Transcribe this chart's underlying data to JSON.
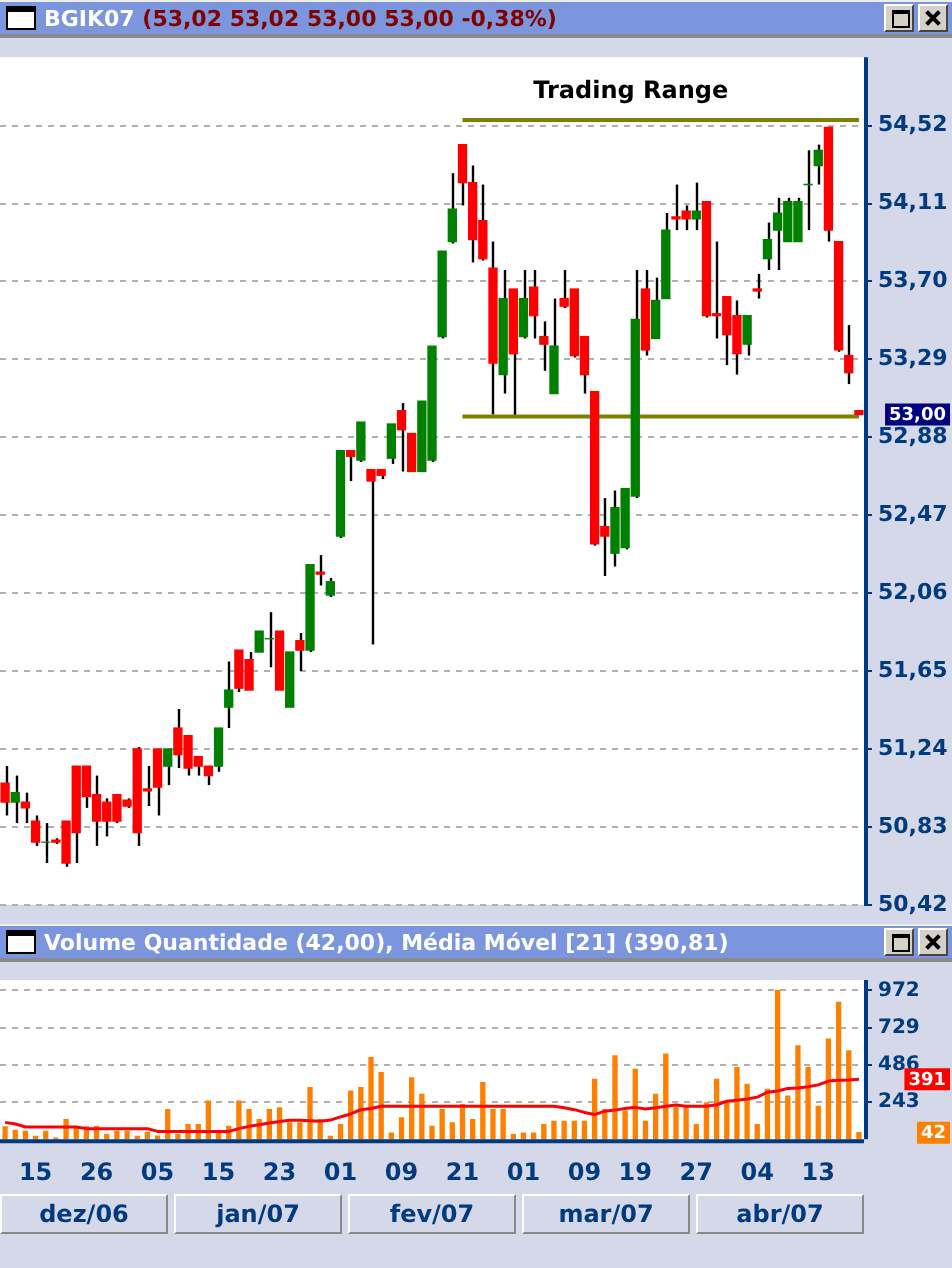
{
  "chart_data": [
    {
      "type": "candlestick",
      "title": "BGIK07 (53,02 53,02 53,00 53,00 -0,38%)",
      "categories": [
        null,
        null,
        null,
        "15",
        null,
        null,
        null,
        null,
        null,
        "26",
        null,
        null,
        null,
        null,
        null,
        "05",
        null,
        null,
        null,
        null,
        null,
        "15",
        null,
        null,
        null,
        null,
        null,
        "23",
        null,
        null,
        null,
        null,
        null,
        "01",
        null,
        null,
        null,
        null,
        null,
        "09",
        null,
        null,
        null,
        null,
        null,
        "21",
        null,
        null,
        null,
        null,
        null,
        "01",
        null,
        null,
        null,
        null,
        null,
        "09",
        null,
        null,
        null,
        null,
        "19",
        null,
        null,
        null,
        null,
        null,
        "27",
        null,
        null,
        null,
        null,
        null,
        "04",
        null,
        null,
        null,
        null,
        null,
        "13",
        null,
        null,
        null,
        null
      ],
      "ohlc": [
        [
          51.06,
          51.15,
          50.89,
          50.96
        ],
        [
          50.96,
          51.1,
          50.85,
          51.01
        ],
        [
          50.96,
          51.01,
          50.85,
          50.93
        ],
        [
          50.86,
          50.89,
          50.73,
          50.75
        ],
        [
          50.75,
          50.85,
          50.64,
          50.75
        ],
        [
          50.76,
          50.77,
          50.74,
          50.75
        ],
        [
          50.86,
          50.86,
          50.62,
          50.64
        ],
        [
          51.15,
          51.15,
          50.64,
          50.8
        ],
        [
          51.15,
          51.15,
          50.93,
          50.99
        ],
        [
          51.0,
          51.1,
          50.73,
          50.86
        ],
        [
          50.96,
          50.98,
          50.78,
          50.86
        ],
        [
          51.0,
          51.0,
          50.85,
          50.86
        ],
        [
          50.97,
          50.98,
          50.93,
          50.94
        ],
        [
          51.24,
          51.25,
          50.73,
          50.8
        ],
        [
          51.03,
          51.15,
          50.94,
          51.02
        ],
        [
          51.24,
          51.24,
          50.89,
          51.04
        ],
        [
          51.15,
          51.24,
          51.05,
          51.24
        ],
        [
          51.35,
          51.45,
          51.14,
          51.21
        ],
        [
          51.31,
          51.31,
          51.1,
          51.14
        ],
        [
          51.2,
          51.2,
          51.1,
          51.15
        ],
        [
          51.15,
          51.15,
          51.05,
          51.1
        ],
        [
          51.15,
          51.35,
          51.12,
          51.35
        ],
        [
          51.46,
          51.7,
          51.35,
          51.55
        ],
        [
          51.76,
          51.76,
          51.54,
          51.56
        ],
        [
          51.71,
          51.75,
          51.55,
          51.55
        ],
        [
          51.75,
          51.86,
          51.75,
          51.86
        ],
        [
          51.82,
          51.96,
          51.67,
          51.82
        ],
        [
          51.86,
          51.86,
          51.55,
          51.55
        ],
        [
          51.46,
          51.75,
          51.46,
          51.75
        ],
        [
          51.81,
          51.85,
          51.65,
          51.76
        ],
        [
          51.76,
          52.21,
          51.75,
          52.21
        ],
        [
          52.17,
          52.26,
          52.1,
          52.16
        ],
        [
          52.05,
          52.14,
          52.04,
          52.12
        ],
        [
          52.36,
          52.81,
          52.35,
          52.81
        ],
        [
          52.81,
          52.81,
          52.65,
          52.78
        ],
        [
          52.76,
          52.96,
          52.75,
          52.96
        ],
        [
          52.71,
          52.71,
          51.79,
          52.65
        ],
        [
          52.71,
          52.71,
          52.66,
          52.68
        ],
        [
          52.77,
          52.95,
          52.74,
          52.95
        ],
        [
          53.02,
          53.06,
          52.7,
          52.92
        ],
        [
          52.9,
          52.9,
          52.7,
          52.7
        ],
        [
          52.7,
          53.07,
          52.7,
          53.07
        ],
        [
          52.76,
          53.36,
          52.75,
          53.36
        ],
        [
          53.41,
          53.86,
          53.4,
          53.86
        ],
        [
          53.91,
          54.27,
          53.9,
          54.08
        ],
        [
          54.42,
          54.42,
          54.1,
          54.22
        ],
        [
          54.22,
          54.31,
          53.8,
          53.92
        ],
        [
          54.02,
          54.21,
          53.81,
          53.82
        ],
        [
          53.77,
          53.91,
          53.0,
          53.27
        ],
        [
          53.21,
          53.76,
          53.11,
          53.61
        ],
        [
          53.66,
          53.66,
          52.99,
          53.32
        ],
        [
          53.41,
          53.76,
          53.4,
          53.61
        ],
        [
          53.67,
          53.76,
          53.4,
          53.52
        ],
        [
          53.41,
          53.49,
          53.23,
          53.37
        ],
        [
          53.11,
          53.61,
          53.11,
          53.36
        ],
        [
          53.61,
          53.76,
          53.56,
          53.57
        ],
        [
          53.66,
          53.66,
          53.3,
          53.31
        ],
        [
          53.41,
          53.41,
          53.11,
          53.21
        ],
        [
          53.12,
          53.12,
          52.31,
          52.32
        ],
        [
          52.41,
          52.56,
          52.15,
          52.36
        ],
        [
          52.27,
          52.6,
          52.2,
          52.51
        ],
        [
          52.3,
          52.61,
          52.29,
          52.61
        ],
        [
          52.57,
          53.76,
          52.56,
          53.5
        ],
        [
          53.66,
          53.76,
          53.31,
          53.34
        ],
        [
          53.4,
          53.72,
          53.4,
          53.6
        ],
        [
          53.61,
          54.06,
          53.61,
          53.97
        ],
        [
          54.04,
          54.21,
          53.97,
          54.03
        ],
        [
          54.07,
          54.1,
          53.97,
          54.03
        ],
        [
          54.03,
          54.22,
          53.97,
          54.07
        ],
        [
          54.12,
          54.12,
          53.51,
          53.52
        ],
        [
          53.53,
          53.91,
          53.4,
          53.52
        ],
        [
          53.62,
          53.62,
          53.26,
          53.42
        ],
        [
          53.52,
          53.6,
          53.21,
          53.32
        ],
        [
          53.37,
          53.52,
          53.31,
          53.52
        ],
        [
          53.66,
          53.74,
          53.61,
          53.65
        ],
        [
          53.82,
          54.01,
          53.76,
          53.92
        ],
        [
          53.97,
          54.14,
          53.76,
          54.06
        ],
        [
          53.91,
          54.14,
          53.91,
          54.12
        ],
        [
          53.91,
          54.14,
          53.91,
          54.12
        ],
        [
          54.21,
          54.39,
          53.97,
          54.21
        ],
        [
          54.31,
          54.42,
          54.21,
          54.39
        ],
        [
          54.51,
          54.51,
          53.91,
          53.97
        ],
        [
          53.91,
          53.91,
          53.33,
          53.34
        ],
        [
          53.31,
          53.47,
          53.16,
          53.22
        ],
        [
          53.02,
          53.02,
          53.0,
          53.0
        ]
      ],
      "series": [
        {
          "type": "line",
          "color": "#808000",
          "values": [
            null,
            null,
            null,
            null,
            null,
            null,
            null,
            null,
            null,
            null,
            null,
            null,
            null,
            null,
            null,
            null,
            null,
            null,
            null,
            null,
            null,
            null,
            null,
            null,
            null,
            null,
            null,
            null,
            null,
            null,
            null,
            null,
            null,
            null,
            null,
            null,
            null,
            null,
            null,
            null,
            null,
            null,
            null,
            null,
            null,
            54.55,
            null,
            null,
            null,
            null,
            null,
            null,
            null,
            null,
            null,
            null,
            null,
            null,
            null,
            null,
            null,
            null,
            null,
            null,
            null,
            null,
            null,
            null,
            null,
            null,
            null,
            null,
            null,
            null,
            null,
            null,
            null,
            null,
            null,
            null,
            null,
            null,
            null,
            null,
            54.55
          ]
        },
        {
          "type": "line",
          "color": "#808000",
          "values": [
            null,
            null,
            null,
            null,
            null,
            null,
            null,
            null,
            null,
            null,
            null,
            null,
            null,
            null,
            null,
            null,
            null,
            null,
            null,
            null,
            null,
            null,
            null,
            null,
            null,
            null,
            null,
            null,
            null,
            null,
            null,
            null,
            null,
            null,
            null,
            null,
            null,
            null,
            null,
            null,
            null,
            null,
            null,
            null,
            null,
            52.99,
            null,
            null,
            null,
            null,
            null,
            null,
            null,
            null,
            null,
            null,
            null,
            null,
            null,
            null,
            null,
            null,
            null,
            null,
            null,
            null,
            null,
            null,
            null,
            null,
            null,
            null,
            null,
            null,
            null,
            null,
            null,
            null,
            null,
            null,
            null,
            null,
            null,
            null,
            52.99
          ]
        }
      ],
      "ylim": [
        50.42,
        54.88
      ],
      "yticks": [
        {
          "value": 50.42,
          "label": "50,42"
        },
        {
          "value": 50.83,
          "label": "50,83"
        },
        {
          "value": 51.24,
          "label": "51,24"
        },
        {
          "value": 51.65,
          "label": "51,65"
        },
        {
          "value": 52.06,
          "label": "52,06"
        },
        {
          "value": 52.47,
          "label": "52,47"
        },
        {
          "value": 52.88,
          "label": "52,88"
        },
        {
          "value": 53.29,
          "label": "53,29"
        },
        {
          "value": 53.7,
          "label": "53,70"
        },
        {
          "value": 54.11,
          "label": "54,11"
        },
        {
          "value": 54.52,
          "label": "54,52"
        }
      ],
      "annotations": [
        {
          "text": "Trading Range",
          "y": 54.55
        },
        "53,00"
      ],
      "grid": "y",
      "tick_labels": "y"
    },
    {
      "type": "bar",
      "title": "Volume Quantidade (42,00), Média Móvel [21] (390,81)",
      "categories": [
        null,
        null,
        null,
        "15",
        null,
        null,
        null,
        null,
        null,
        "26",
        null,
        null,
        null,
        null,
        null,
        "05",
        null,
        null,
        null,
        null,
        null,
        "15",
        null,
        null,
        null,
        null,
        null,
        "23",
        null,
        null,
        null,
        null,
        null,
        "01",
        null,
        null,
        null,
        null,
        null,
        "09",
        null,
        null,
        null,
        null,
        null,
        "21",
        null,
        null,
        null,
        null,
        null,
        "01",
        null,
        null,
        null,
        null,
        null,
        "09",
        null,
        null,
        null,
        null,
        "19",
        null,
        null,
        null,
        null,
        null,
        "27",
        null,
        null,
        null,
        null,
        null,
        "04",
        null,
        null,
        null,
        null,
        null,
        "13",
        null,
        null,
        null,
        null
      ],
      "values": [
        80,
        58,
        51,
        18,
        51,
        7,
        128,
        80,
        80,
        84,
        29,
        51,
        51,
        18,
        44,
        20,
        193,
        29,
        95,
        95,
        248,
        55,
        84,
        248,
        193,
        128,
        193,
        204,
        106,
        106,
        336,
        128,
        18,
        95,
        314,
        336,
        533,
        434,
        40,
        139,
        401,
        292,
        84,
        193,
        106,
        226,
        128,
        369,
        193,
        193,
        29,
        40,
        40,
        95,
        117,
        117,
        117,
        117,
        391,
        193,
        544,
        183,
        456,
        117,
        292,
        555,
        204,
        215,
        95,
        237,
        391,
        237,
        467,
        358,
        95,
        325,
        971,
        281,
        610,
        467,
        215,
        653,
        894,
        577,
        42
      ],
      "color": "#ff8000",
      "series": [
        {
          "type": "line",
          "color": "#ff0000",
          "values": [
            110,
            100,
            80,
            80,
            80,
            80,
            80,
            80,
            69,
            69,
            69,
            69,
            69,
            69,
            69,
            51,
            51,
            51,
            51,
            51,
            51,
            51,
            51,
            69,
            84,
            95,
            106,
            115,
            124,
            124,
            120,
            117,
            125,
            146,
            165,
            193,
            200,
            215,
            215,
            215,
            215,
            215,
            215,
            215,
            215,
            215,
            215,
            215,
            215,
            215,
            215,
            215,
            215,
            215,
            215,
            205,
            193,
            175,
            161,
            183,
            190,
            200,
            208,
            197,
            205,
            215,
            223,
            215,
            215,
            215,
            225,
            248,
            255,
            263,
            275,
            307,
            315,
            332,
            335,
            343,
            355,
            380,
            385,
            387,
            391
          ]
        }
      ],
      "ylim": [
        0,
        1040
      ],
      "yticks": [
        243,
        486,
        729,
        972
      ],
      "annotations": [
        "42",
        "391",
        "dez/06",
        "jan/07",
        "fev/07",
        "mar/07",
        "abr/07"
      ],
      "grid": "y"
    }
  ]
}
